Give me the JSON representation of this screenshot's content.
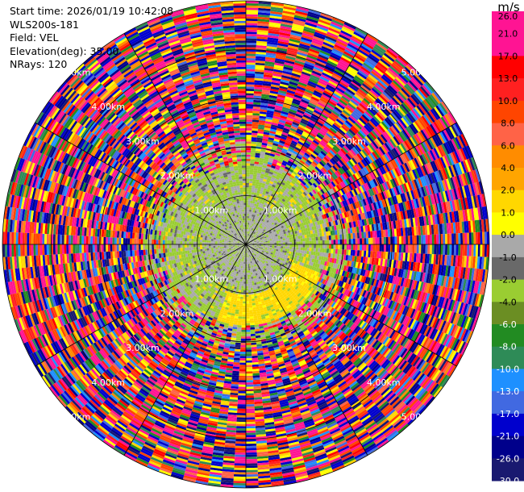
{
  "header": {
    "start_time": "Start time: 2026/01/19 10:42:08",
    "instrument": "WLS200s-181",
    "field": "Field: VEL",
    "elevation": "Elevation(deg): 35.00",
    "nrays": "NRays: 120"
  },
  "colorbar": {
    "unit": "m/s",
    "ticks": [
      "26.0",
      "21.0",
      "17.0",
      "13.0",
      "10.0",
      "8.0",
      "6.0",
      "4.0",
      "2.0",
      "1.0",
      "0.0",
      "-1.0",
      "-2.0",
      "-4.0",
      "-6.0",
      "-8.0",
      "-10.0",
      "-13.0",
      "-17.0",
      "-21.0",
      "-26.0",
      "-30.0"
    ],
    "colors": [
      "#ff1493",
      "#ff1493",
      "#ff0000",
      "#ff2020",
      "#ff4500",
      "#ff6347",
      "#ff8c00",
      "#ffa500",
      "#ffd700",
      "#ffff00",
      "#a9a9a9",
      "#696969",
      "#9acd32",
      "#6b8e23",
      "#228b22",
      "#2e8b57",
      "#1e90ff",
      "#4169e1",
      "#0000cd",
      "#00008b",
      "#191970"
    ]
  },
  "chart_data": {
    "type": "heatmap",
    "projection": "polar PPI",
    "field": "VEL",
    "units": "m/s",
    "nrays": 120,
    "range_rings_km": [
      {
        "label": "1.00km",
        "km": 1.0
      },
      {
        "label": "2.00km",
        "km": 2.0
      },
      {
        "label": "3.00km",
        "km": 3.0
      },
      {
        "label": "4.00km",
        "km": 4.0
      },
      {
        "label": "5.00km",
        "km": 5.0
      }
    ],
    "max_range_km": 5.0,
    "value_range": [
      -30.0,
      26.0
    ],
    "description_regions": [
      {
        "range_km": [
          0.0,
          1.0
        ],
        "typical_values": [
          -1.0,
          0.0
        ]
      },
      {
        "range_km": [
          0.5,
          1.6
        ],
        "typical_values": [
          -2.0,
          -1.0
        ]
      },
      {
        "range_km": [
          1.0,
          1.8
        ],
        "sector": "south-east",
        "typical_values": [
          2.0,
          4.0
        ]
      },
      {
        "range_km": [
          1.8,
          5.0
        ],
        "typical_values": "noise spanning full scale"
      }
    ]
  }
}
